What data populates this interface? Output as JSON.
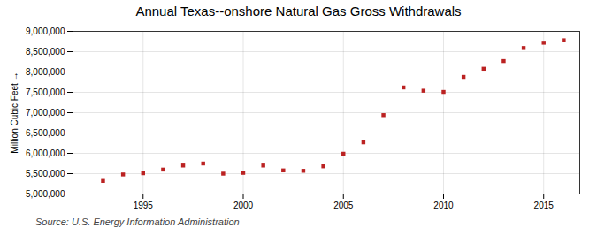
{
  "chart_data": {
    "type": "scatter",
    "title": "Annual Texas--onshore Natural Gas Gross Withdrawals",
    "ylabel": "Million Cubic Feet",
    "source": "Source: U.S. Energy Information Administration",
    "x": [
      1993,
      1994,
      1995,
      1996,
      1997,
      1998,
      1999,
      2000,
      2001,
      2002,
      2003,
      2004,
      2005,
      2006,
      2007,
      2008,
      2009,
      2010,
      2011,
      2012,
      2013,
      2014,
      2015,
      2016
    ],
    "values": [
      5320000,
      5480000,
      5510000,
      5600000,
      5700000,
      5750000,
      5500000,
      5520000,
      5700000,
      5580000,
      5570000,
      5680000,
      5990000,
      6270000,
      6940000,
      7620000,
      7540000,
      7510000,
      7880000,
      8080000,
      8270000,
      8590000,
      8720000,
      8780000
    ],
    "color": "#bb2222",
    "marker": "square",
    "xlim": [
      1991.5,
      2016.8
    ],
    "xticks": [
      1995,
      2000,
      2005,
      2010,
      2015
    ],
    "ylim": [
      5000000,
      9000000
    ],
    "yticks": [
      {
        "value": 5000000,
        "label": "5,000,000"
      },
      {
        "value": 5500000,
        "label": "5,500,000"
      },
      {
        "value": 6000000,
        "label": "6,000,000"
      },
      {
        "value": 6500000,
        "label": "6,500,000"
      },
      {
        "value": 7000000,
        "label": "7,000,000"
      },
      {
        "value": 7500000,
        "label": "7,500,000"
      },
      {
        "value": 8000000,
        "label": "8,000,000"
      },
      {
        "value": 8500000,
        "label": "8,500,000"
      },
      {
        "value": 9000000,
        "label": "9,000,000"
      }
    ],
    "grid": true
  }
}
